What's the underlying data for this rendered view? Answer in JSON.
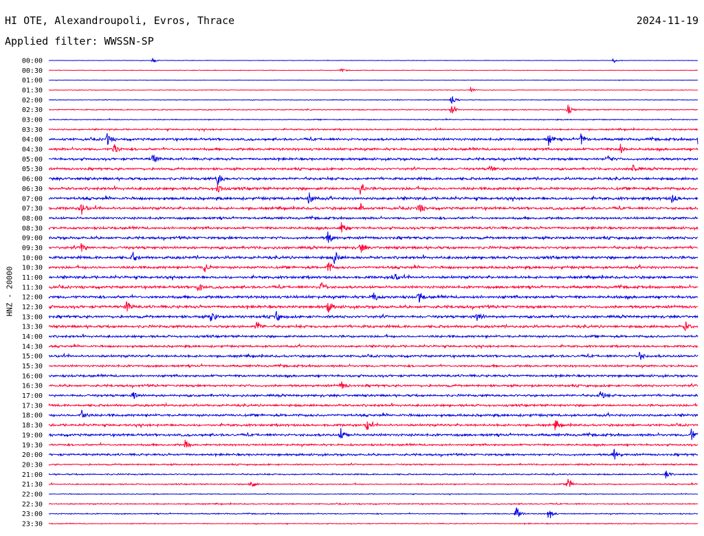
{
  "header": {
    "station": "HI OTE, Alexandroupoli, Evros, Thrace",
    "filter_line": "Applied filter: WWSSN-SP",
    "date": "2024-11-19"
  },
  "chart_data": {
    "type": "line",
    "title": "HI OTE, Alexandroupoli, Evros, Thrace",
    "subtitle": "Applied filter: WWSSN-SP",
    "date": "2024-11-19",
    "ylabel": "HNZ - 20000",
    "xlabel": "",
    "trace_colors": [
      "#0000e0",
      "#ff0033"
    ],
    "row_labels": [
      "00:00",
      "00:30",
      "01:00",
      "01:30",
      "02:00",
      "02:30",
      "03:00",
      "03:30",
      "04:00",
      "04:30",
      "05:00",
      "05:30",
      "06:00",
      "06:30",
      "07:00",
      "07:30",
      "08:00",
      "08:30",
      "09:00",
      "09:30",
      "10:00",
      "10:30",
      "11:00",
      "11:30",
      "12:00",
      "12:30",
      "13:00",
      "13:30",
      "14:00",
      "14:30",
      "15:00",
      "15:30",
      "16:00",
      "16:30",
      "17:00",
      "17:30",
      "18:00",
      "18:30",
      "19:00",
      "19:30",
      "20:00",
      "20:30",
      "21:00",
      "21:30",
      "22:00",
      "22:30",
      "23:00",
      "23:30"
    ],
    "noise_level": [
      0.3,
      0.4,
      0.3,
      0.4,
      0.5,
      0.7,
      0.6,
      1.0,
      1.6,
      1.6,
      1.6,
      1.5,
      1.7,
      1.8,
      1.8,
      1.7,
      1.5,
      1.6,
      1.7,
      1.7,
      1.8,
      1.7,
      1.7,
      1.7,
      1.8,
      1.8,
      1.7,
      1.7,
      1.5,
      1.4,
      1.5,
      1.4,
      1.5,
      1.5,
      1.5,
      1.5,
      1.6,
      1.5,
      1.6,
      1.3,
      1.4,
      1.0,
      0.9,
      0.8,
      0.5,
      0.8,
      0.7,
      0.6
    ],
    "events": [
      {
        "row": "00:00",
        "x": 0.16,
        "amp": 0.4
      },
      {
        "row": "00:00",
        "x": 0.87,
        "amp": 0.4
      },
      {
        "row": "00:30",
        "x": 0.45,
        "amp": 0.3
      },
      {
        "row": "01:30",
        "x": 0.65,
        "amp": 0.5
      },
      {
        "row": "02:00",
        "x": 0.62,
        "amp": 1.0
      },
      {
        "row": "02:30",
        "x": 0.62,
        "amp": 1.0
      },
      {
        "row": "02:30",
        "x": 0.8,
        "amp": 0.8
      },
      {
        "row": "04:00",
        "x": 0.09,
        "amp": 1.0
      },
      {
        "row": "04:00",
        "x": 0.77,
        "amp": 1.0
      },
      {
        "row": "04:00",
        "x": 0.82,
        "amp": 1.0
      },
      {
        "row": "04:00",
        "x": 1.0,
        "amp": 1.1
      },
      {
        "row": "04:30",
        "x": 0.1,
        "amp": 1.1
      },
      {
        "row": "04:30",
        "x": 0.88,
        "amp": 1.0
      },
      {
        "row": "05:00",
        "x": 0.16,
        "amp": 0.9
      },
      {
        "row": "05:00",
        "x": 0.86,
        "amp": 1.0
      },
      {
        "row": "05:30",
        "x": 0.68,
        "amp": 0.8
      },
      {
        "row": "05:30",
        "x": 0.9,
        "amp": 0.8
      },
      {
        "row": "06:00",
        "x": 0.26,
        "amp": 1.2
      },
      {
        "row": "06:30",
        "x": 0.26,
        "amp": 1.0
      },
      {
        "row": "06:30",
        "x": 0.48,
        "amp": 1.0
      },
      {
        "row": "07:00",
        "x": 0.4,
        "amp": 1.3
      },
      {
        "row": "07:00",
        "x": 0.96,
        "amp": 0.8
      },
      {
        "row": "07:30",
        "x": 0.05,
        "amp": 1.1
      },
      {
        "row": "07:30",
        "x": 0.48,
        "amp": 0.8
      },
      {
        "row": "07:30",
        "x": 0.57,
        "amp": 1.0
      },
      {
        "row": "08:30",
        "x": 0.45,
        "amp": 1.1
      },
      {
        "row": "09:00",
        "x": 0.43,
        "amp": 1.2
      },
      {
        "row": "09:30",
        "x": 0.05,
        "amp": 1.0
      },
      {
        "row": "09:30",
        "x": 0.48,
        "amp": 1.0
      },
      {
        "row": "10:00",
        "x": 0.44,
        "amp": 1.3
      },
      {
        "row": "10:00",
        "x": 0.13,
        "amp": 0.8
      },
      {
        "row": "10:30",
        "x": 0.43,
        "amp": 1.2
      },
      {
        "row": "10:30",
        "x": 0.24,
        "amp": 0.9
      },
      {
        "row": "11:00",
        "x": 0.53,
        "amp": 1.1
      },
      {
        "row": "11:30",
        "x": 0.42,
        "amp": 1.2
      },
      {
        "row": "11:30",
        "x": 0.23,
        "amp": 0.9
      },
      {
        "row": "12:00",
        "x": 0.5,
        "amp": 1.0
      },
      {
        "row": "12:00",
        "x": 0.57,
        "amp": 1.0
      },
      {
        "row": "12:30",
        "x": 0.12,
        "amp": 1.0
      },
      {
        "row": "12:30",
        "x": 0.43,
        "amp": 1.0
      },
      {
        "row": "13:00",
        "x": 0.25,
        "amp": 1.3
      },
      {
        "row": "13:00",
        "x": 0.35,
        "amp": 1.0
      },
      {
        "row": "13:00",
        "x": 0.66,
        "amp": 1.0
      },
      {
        "row": "13:30",
        "x": 0.32,
        "amp": 1.0
      },
      {
        "row": "13:30",
        "x": 0.98,
        "amp": 0.8
      },
      {
        "row": "15:00",
        "x": 0.91,
        "amp": 0.8
      },
      {
        "row": "16:30",
        "x": 0.45,
        "amp": 1.0
      },
      {
        "row": "17:00",
        "x": 0.13,
        "amp": 0.9
      },
      {
        "row": "17:00",
        "x": 0.85,
        "amp": 0.9
      },
      {
        "row": "18:00",
        "x": 0.05,
        "amp": 1.2
      },
      {
        "row": "18:30",
        "x": 0.49,
        "amp": 1.0
      },
      {
        "row": "18:30",
        "x": 0.78,
        "amp": 0.9
      },
      {
        "row": "19:00",
        "x": 0.45,
        "amp": 1.1
      },
      {
        "row": "19:00",
        "x": 0.99,
        "amp": 1.0
      },
      {
        "row": "19:30",
        "x": 0.21,
        "amp": 0.8
      },
      {
        "row": "20:00",
        "x": 0.87,
        "amp": 1.1
      },
      {
        "row": "21:00",
        "x": 0.95,
        "amp": 0.8
      },
      {
        "row": "21:30",
        "x": 0.31,
        "amp": 1.1
      },
      {
        "row": "21:30",
        "x": 0.8,
        "amp": 1.2
      },
      {
        "row": "23:00",
        "x": 0.72,
        "amp": 1.3
      },
      {
        "row": "23:00",
        "x": 0.77,
        "amp": 1.3
      }
    ]
  }
}
